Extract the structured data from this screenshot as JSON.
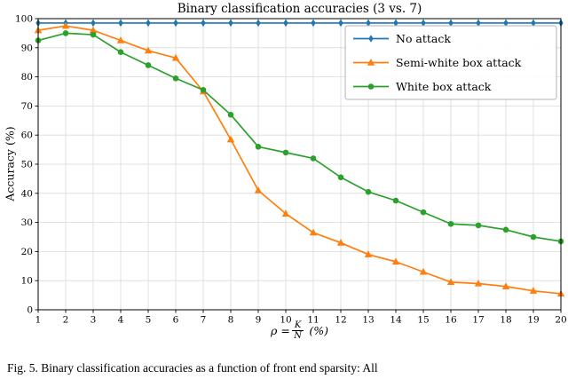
{
  "figure": {
    "caption": "Fig. 5.   Binary classification accuracies as a function of front end sparsity: All"
  },
  "chart_data": {
    "type": "line",
    "title": "Binary classification accuracies (3 vs. 7)",
    "xlabel": "ρ = K/N (%)",
    "xlabel_parts": {
      "prefix": "ρ =",
      "numerator": "K",
      "denominator": "N",
      "suffix": "(%)"
    },
    "ylabel": "Accuracy (%)",
    "xlim": [
      1,
      20
    ],
    "ylim": [
      0,
      100
    ],
    "xticks": [
      1,
      2,
      3,
      4,
      5,
      6,
      7,
      8,
      9,
      10,
      11,
      12,
      13,
      14,
      15,
      16,
      17,
      18,
      19,
      20
    ],
    "yticks": [
      0,
      10,
      20,
      30,
      40,
      50,
      60,
      70,
      80,
      90,
      100
    ],
    "grid": true,
    "legend_position": "upper right",
    "x": [
      1,
      2,
      3,
      4,
      5,
      6,
      7,
      8,
      9,
      10,
      11,
      12,
      13,
      14,
      15,
      16,
      17,
      18,
      19,
      20
    ],
    "series": [
      {
        "name": "No attack",
        "color": "#1f77b4",
        "marker": "thin-diamond",
        "values": [
          98.5,
          98.5,
          98.5,
          98.5,
          98.5,
          98.5,
          98.5,
          98.5,
          98.5,
          98.5,
          98.5,
          98.5,
          98.5,
          98.5,
          98.5,
          98.5,
          98.5,
          98.5,
          98.5,
          98.5
        ]
      },
      {
        "name": "Semi-white box attack",
        "color": "#ff7f0e",
        "marker": "triangle-up",
        "values": [
          96,
          97.5,
          96,
          92.5,
          89,
          86.5,
          75,
          58.5,
          41,
          33,
          26.5,
          23,
          19,
          16.5,
          13,
          9.5,
          9,
          8,
          6.5,
          5.5
        ]
      },
      {
        "name": "White box attack",
        "color": "#2ca02c",
        "marker": "circle",
        "values": [
          92.5,
          95,
          94.5,
          88.5,
          84,
          79.5,
          75.5,
          67,
          56,
          54,
          52,
          45.5,
          40.5,
          37.5,
          33.5,
          29.5,
          29,
          27.5,
          25,
          23.5
        ]
      }
    ]
  }
}
